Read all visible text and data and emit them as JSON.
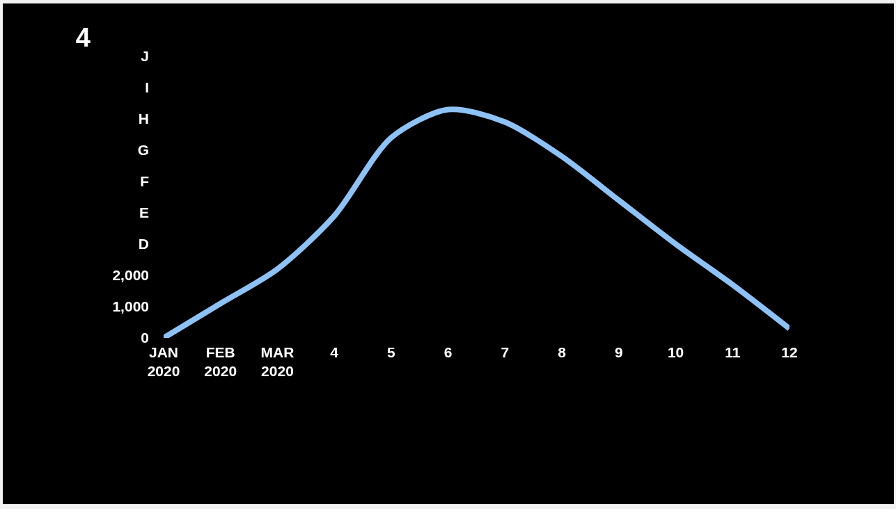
{
  "chart_data": {
    "type": "line",
    "title": "4",
    "categories": [
      "JAN\n2020",
      "FEB\n2020",
      "MAR\n2020",
      "4",
      "5",
      "6",
      "7",
      "8",
      "9",
      "10",
      "11",
      "12"
    ],
    "series": [
      {
        "color": "#8ec2f5",
        "values": [
          0,
          1100,
          2200,
          3900,
          6400,
          7300,
          6900,
          5800,
          4400,
          3000,
          1700,
          300
        ]
      }
    ],
    "ylim": [
      0,
      9000
    ],
    "yticks": [
      0,
      {
        "value": 1000,
        "label": "1,000"
      },
      {
        "value": 2000,
        "label": "2,000"
      },
      {
        "value": 3000,
        "label": "D"
      },
      {
        "value": 4000,
        "label": "E"
      },
      {
        "value": 5000,
        "label": "F"
      },
      {
        "value": 6000,
        "label": "G"
      },
      {
        "value": 7000,
        "label": "H"
      },
      {
        "value": 8000,
        "label": "I"
      },
      {
        "value": 9000,
        "label": "J"
      }
    ]
  }
}
